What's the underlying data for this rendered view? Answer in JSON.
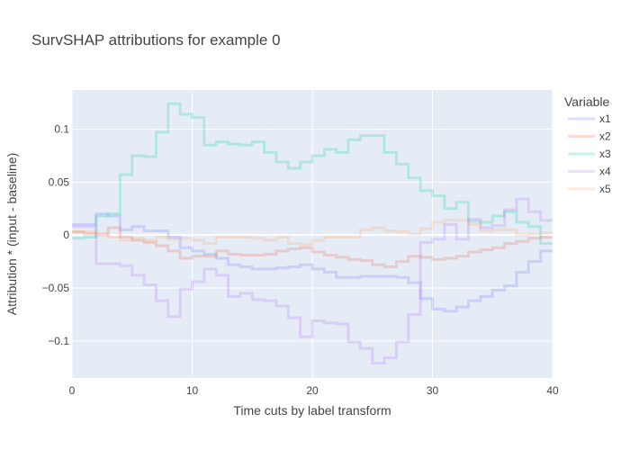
{
  "chart_data": {
    "type": "line",
    "line_shape": "step",
    "title": "SurvSHAP attributions for example 0",
    "xlabel": "Time cuts by label transform",
    "ylabel": "Attribution * (input - baseline)",
    "xlim": [
      0,
      40
    ],
    "ylim": [
      -0.135,
      0.137
    ],
    "grid": true,
    "background": "#e5ecf6",
    "legend": {
      "title": "Variable",
      "placement": "right"
    },
    "x_ticks": [
      0,
      10,
      20,
      30,
      40
    ],
    "x_tick_labels": [
      "0",
      "10",
      "20",
      "30",
      "40"
    ],
    "y_ticks": [
      -0.1,
      -0.05,
      0,
      0.05,
      0.1
    ],
    "y_tick_labels": [
      "−0.1",
      "−0.05",
      "0",
      "0.05",
      "0.1"
    ],
    "x": [
      0,
      1,
      2,
      3,
      4,
      5,
      6,
      7,
      8,
      9,
      10,
      11,
      12,
      13,
      14,
      15,
      16,
      17,
      18,
      19,
      20,
      21,
      22,
      23,
      24,
      25,
      26,
      27,
      28,
      29,
      30,
      31,
      32,
      33,
      34,
      35,
      36,
      37,
      38,
      39,
      40
    ],
    "series": [
      {
        "name": "x1",
        "color": "#636efa",
        "values": [
          0.01,
          0.01,
          0.02,
          0.018,
          0.005,
          0.008,
          0.004,
          0.004,
          -0.002,
          -0.012,
          -0.015,
          -0.018,
          -0.022,
          -0.028,
          -0.03,
          -0.032,
          -0.032,
          -0.031,
          -0.03,
          -0.028,
          -0.032,
          -0.035,
          -0.04,
          -0.04,
          -0.039,
          -0.039,
          -0.039,
          -0.04,
          -0.045,
          -0.06,
          -0.07,
          -0.072,
          -0.068,
          -0.062,
          -0.058,
          -0.052,
          -0.048,
          -0.035,
          -0.025,
          -0.015,
          -0.015
        ]
      },
      {
        "name": "x2",
        "color": "#ef553b",
        "values": [
          0.003,
          0.001,
          0.0,
          0.007,
          -0.002,
          -0.005,
          -0.007,
          -0.01,
          -0.015,
          -0.022,
          -0.02,
          -0.02,
          -0.015,
          -0.018,
          -0.019,
          -0.019,
          -0.018,
          -0.015,
          -0.013,
          -0.012,
          -0.016,
          -0.019,
          -0.021,
          -0.023,
          -0.024,
          -0.028,
          -0.03,
          -0.025,
          -0.02,
          -0.021,
          -0.023,
          -0.022,
          -0.02,
          -0.016,
          -0.014,
          -0.012,
          -0.008,
          -0.006,
          -0.003,
          -0.002,
          -0.002
        ]
      },
      {
        "name": "x3",
        "color": "#00cc96",
        "values": [
          -0.003,
          -0.002,
          0.018,
          0.02,
          0.057,
          0.075,
          0.074,
          0.097,
          0.124,
          0.114,
          0.111,
          0.085,
          0.088,
          0.086,
          0.085,
          0.088,
          0.078,
          0.069,
          0.063,
          0.069,
          0.075,
          0.081,
          0.078,
          0.09,
          0.094,
          0.094,
          0.078,
          0.067,
          0.054,
          0.042,
          0.037,
          0.025,
          0.031,
          0.013,
          0.012,
          0.018,
          0.022,
          0.012,
          0.008,
          -0.008,
          -0.008
        ]
      },
      {
        "name": "x4",
        "color": "#ab63fa",
        "values": [
          0.008,
          0.008,
          -0.027,
          -0.027,
          -0.029,
          -0.038,
          -0.047,
          -0.062,
          -0.077,
          -0.051,
          -0.044,
          -0.032,
          -0.038,
          -0.058,
          -0.055,
          -0.061,
          -0.062,
          -0.067,
          -0.078,
          -0.096,
          -0.081,
          -0.083,
          -0.084,
          -0.101,
          -0.107,
          -0.121,
          -0.116,
          -0.101,
          -0.075,
          -0.007,
          -0.004,
          0.01,
          -0.004,
          0.015,
          0.007,
          0.009,
          0.024,
          0.034,
          0.022,
          0.014,
          0.014
        ]
      },
      {
        "name": "x5",
        "color": "#ffa15a",
        "values": [
          0.003,
          0.003,
          0.002,
          -0.002,
          -0.005,
          -0.003,
          -0.005,
          -0.002,
          -0.004,
          -0.003,
          -0.005,
          -0.008,
          -0.002,
          -0.002,
          -0.002,
          -0.003,
          -0.005,
          -0.002,
          -0.008,
          -0.009,
          -0.005,
          -0.002,
          -0.002,
          -0.002,
          0.005,
          0.007,
          0.004,
          0.003,
          0.001,
          0.006,
          0.012,
          0.014,
          0.014,
          0.01,
          0.004,
          0.005,
          0.005,
          0.0,
          0.001,
          0.002,
          0.002
        ]
      }
    ]
  }
}
